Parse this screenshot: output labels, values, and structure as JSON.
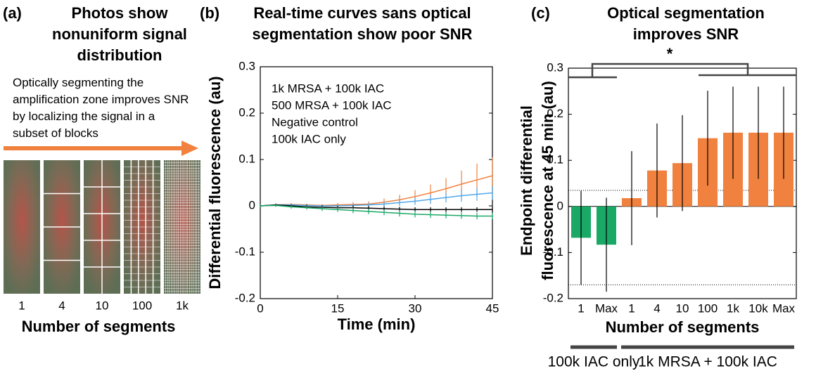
{
  "panel_a": {
    "label": "(a)",
    "title": "Photos show nonuniform signal distribution",
    "caption": "Optically segmenting the amplification zone improves SNR by localizing the signal in a subset of blocks",
    "segment_labels": [
      "1",
      "4",
      "10",
      "100",
      "1k"
    ],
    "xlabel": "Number of segments"
  },
  "chart_data": [
    {
      "type": "line",
      "label": "(b)",
      "title": "Real-time curves sans optical segmentation show poor SNR",
      "xlabel": "Time (min)",
      "ylabel": "Differential fluorescence (au)",
      "x": [
        0,
        3,
        6,
        9,
        12,
        15,
        18,
        21,
        24,
        27,
        30,
        33,
        36,
        39,
        42,
        45
      ],
      "xlim": [
        0,
        45
      ],
      "xticks": [
        0,
        15,
        30,
        45
      ],
      "ylim": [
        -0.2,
        0.3
      ],
      "yticks": [
        -0.2,
        -0.1,
        0,
        0.1,
        0.2,
        0.3
      ],
      "series": [
        {
          "name": "1k MRSA + 100k IAC",
          "color": "#f0813e",
          "values": [
            0,
            0.002,
            0.003,
            0.002,
            0.001,
            0.002,
            0.003,
            0.004,
            0.008,
            0.013,
            0.02,
            0.028,
            0.037,
            0.047,
            0.056,
            0.065
          ],
          "errors": [
            0.003,
            0.003,
            0.003,
            0.003,
            0.003,
            0.004,
            0.005,
            0.006,
            0.008,
            0.011,
            0.014,
            0.018,
            0.023,
            0.029,
            0.035,
            0.04
          ]
        },
        {
          "name": "500 MRSA + 100k IAC",
          "color": "#4fa8ec",
          "values": [
            0,
            0.002,
            0.002,
            0.001,
            0,
            0,
            0.001,
            0.002,
            0.004,
            0.007,
            0.01,
            0.014,
            0.018,
            0.022,
            0.025,
            0.028
          ],
          "errors": [
            0.003,
            0.003,
            0.003,
            0.003,
            0.003,
            0.004,
            0.004,
            0.005,
            0.006,
            0.007,
            0.008,
            0.01,
            0.011,
            0.013,
            0.014,
            0.015
          ]
        },
        {
          "name": "Negative control",
          "color": "#000000",
          "values": [
            0,
            0.002,
            0,
            -0.002,
            -0.003,
            -0.004,
            -0.004,
            -0.005,
            -0.006,
            -0.007,
            -0.008,
            -0.008,
            -0.008,
            -0.008,
            -0.008,
            -0.008
          ],
          "errors": [
            0.003,
            0.003,
            0.003,
            0.004,
            0.004,
            0.004,
            0.005,
            0.005,
            0.005,
            0.005,
            0.005,
            0.005,
            0.005,
            0.005,
            0.005,
            0.005
          ]
        },
        {
          "name": "100k IAC only",
          "color": "#1aa867",
          "values": [
            0,
            0.001,
            -0.002,
            -0.004,
            -0.006,
            -0.008,
            -0.01,
            -0.012,
            -0.014,
            -0.016,
            -0.018,
            -0.019,
            -0.02,
            -0.021,
            -0.022,
            -0.022
          ],
          "errors": [
            0.003,
            0.003,
            0.004,
            0.004,
            0.005,
            0.005,
            0.006,
            0.006,
            0.006,
            0.007,
            0.007,
            0.007,
            0.007,
            0.007,
            0.007,
            0.007
          ]
        }
      ]
    },
    {
      "type": "bar",
      "label": "(c)",
      "title": "Optical segmentation improves SNR",
      "xlabel": "Number of segments",
      "ylabel": "Endpoint differential fluorescence at 45 min (au)",
      "significance_label": "*",
      "categories": [
        "1",
        "Max",
        "1",
        "4",
        "10",
        "100",
        "1k",
        "10k",
        "Max"
      ],
      "ylim": [
        -0.2,
        0.3
      ],
      "yticks": [
        -0.2,
        -0.1,
        0,
        0.1,
        0.2,
        0.3
      ],
      "reference_lines": [
        0.035,
        -0.17
      ],
      "series": [
        {
          "name": "100k IAC only",
          "color": "#1aa867",
          "values": [
            -0.068,
            -0.083,
            null,
            null,
            null,
            null,
            null,
            null,
            null
          ],
          "errors": [
            0.102,
            0.102,
            null,
            null,
            null,
            null,
            null,
            null,
            null
          ]
        },
        {
          "name": "1k MRSA + 100k IAC",
          "color": "#f0813e",
          "values": [
            null,
            null,
            0.018,
            0.078,
            0.094,
            0.148,
            0.16,
            0.16,
            0.16
          ],
          "errors": [
            null,
            null,
            0.102,
            0.102,
            0.104,
            0.103,
            0.1,
            0.1,
            0.1
          ]
        }
      ]
    }
  ]
}
